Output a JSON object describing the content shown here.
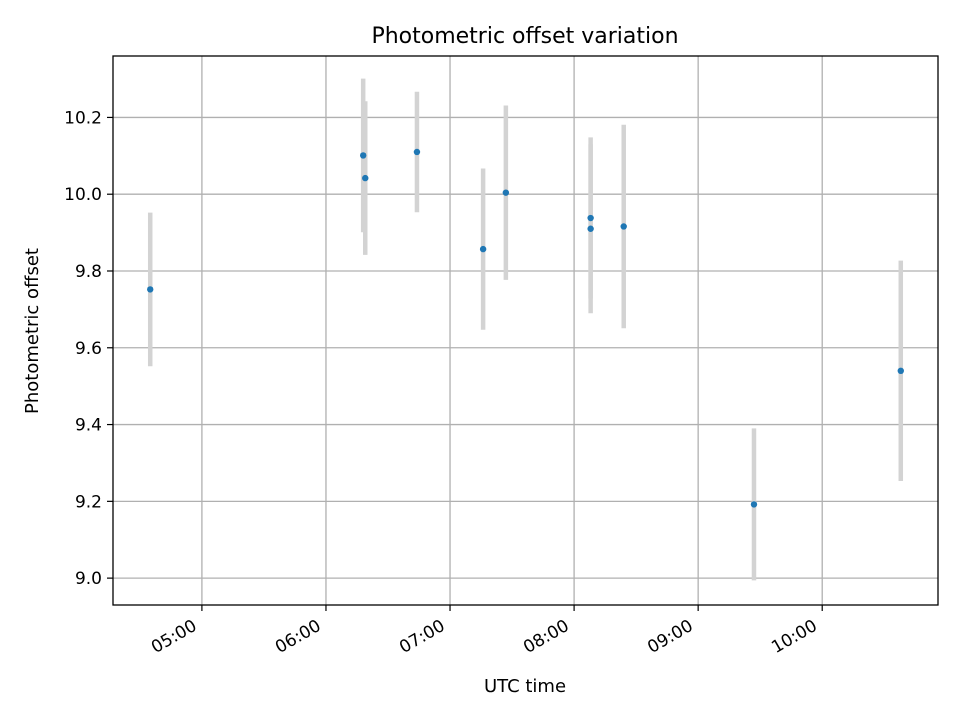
{
  "chart_data": {
    "type": "scatter",
    "title": "Photometric offset variation",
    "xlabel": "UTC time",
    "ylabel": "Photometric offset",
    "x_axis": {
      "format": "HH:MM",
      "ticks": [
        "05:00",
        "06:00",
        "07:00",
        "08:00",
        "09:00",
        "10:00"
      ],
      "range": [
        "04:17",
        "10:56"
      ]
    },
    "y_axis": {
      "ticks": [
        "9.0",
        "9.2",
        "9.4",
        "9.6",
        "9.8",
        "10.0",
        "10.2"
      ],
      "range": [
        8.93,
        10.36
      ]
    },
    "grid": true,
    "marker_color": "#1f77b4",
    "errorbar_color": "#d3d3d3",
    "points": [
      {
        "time": "04:35",
        "y": 9.752,
        "yerr": 0.2
      },
      {
        "time": "06:18",
        "y": 10.101,
        "yerr": 0.2
      },
      {
        "time": "06:19",
        "y": 10.042,
        "yerr": 0.2
      },
      {
        "time": "06:44",
        "y": 10.11,
        "yerr": 0.157
      },
      {
        "time": "07:16",
        "y": 9.857,
        "yerr": 0.21
      },
      {
        "time": "07:27",
        "y": 10.004,
        "yerr": 0.227
      },
      {
        "time": "08:08",
        "y": 9.938,
        "yerr": 0.21
      },
      {
        "time": "08:08",
        "y": 9.91,
        "yerr": 0.22
      },
      {
        "time": "08:24",
        "y": 9.916,
        "yerr": 0.265
      },
      {
        "time": "09:27",
        "y": 9.192,
        "yerr": 0.198
      },
      {
        "time": "10:38",
        "y": 9.54,
        "yerr": 0.287
      }
    ]
  }
}
